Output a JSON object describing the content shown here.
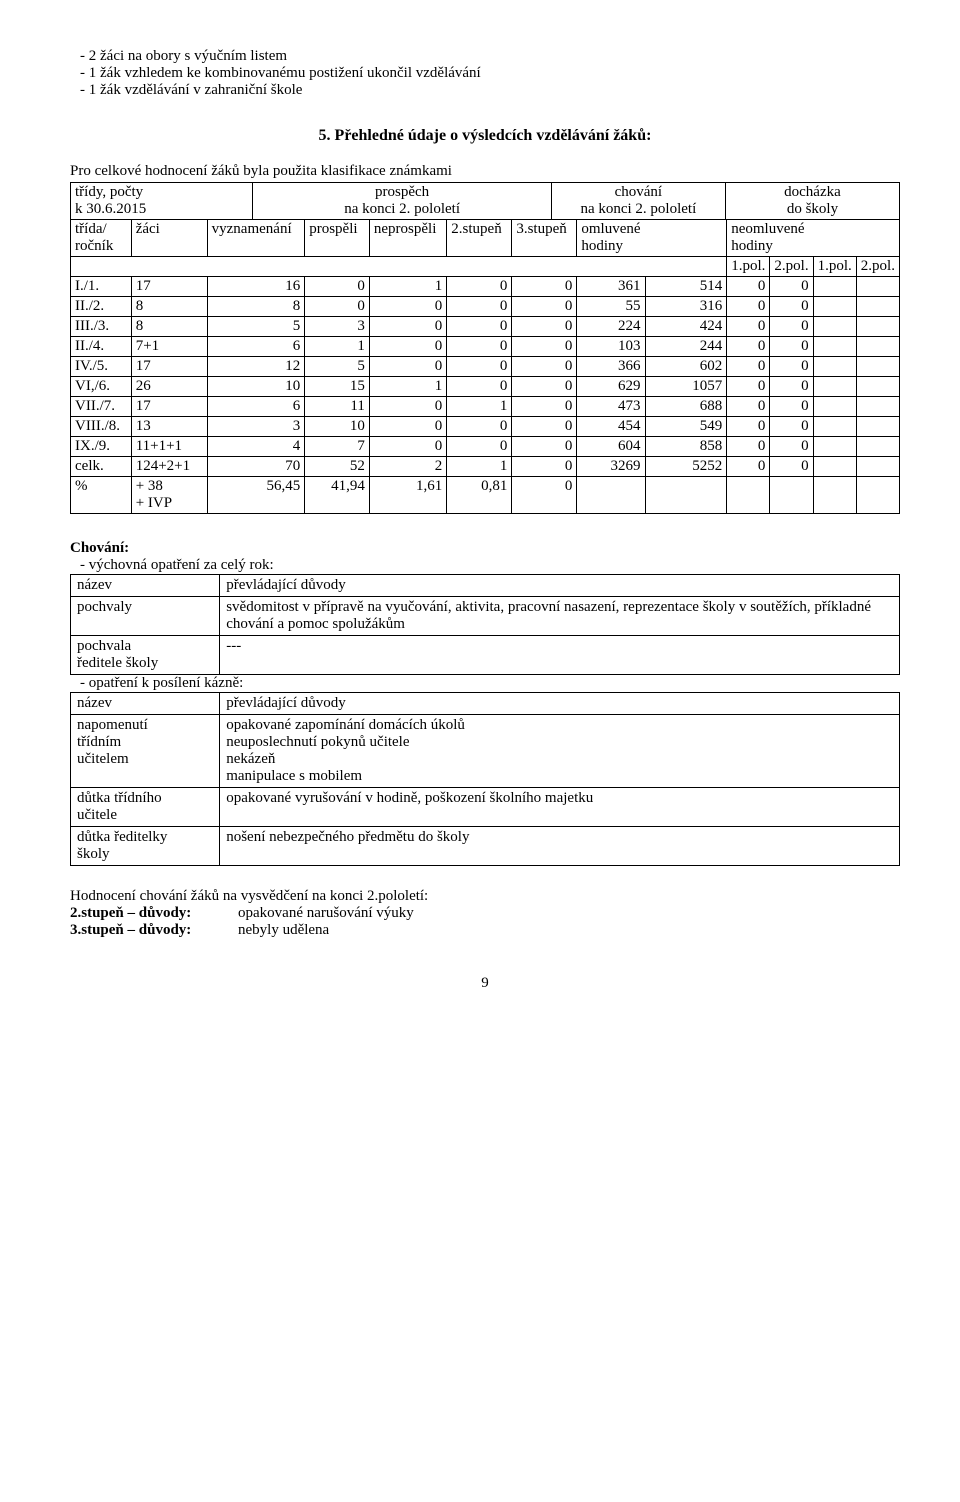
{
  "top_list": [
    "2 žáci na obory s výučním listem",
    "1 žák vzhledem ke kombinovanému postižení ukončil vzdělávání",
    "1 žák vzdělávání v zahraniční škole"
  ],
  "section5_title": "5. Přehledné údaje o výsledcích vzdělávání žáků:",
  "section5_lead": "Pro celkové hodnocení žáků byla použita klasifikace známkami",
  "hdr": {
    "c1a": "třídy, počty",
    "c1b": "k 30.6.2015",
    "c2a": "prospěch",
    "c2b": "na konci 2. pololetí",
    "c3a": "chování",
    "c3b": "na konci 2. pololetí",
    "c4a": "docházka",
    "c4b": "do školy"
  },
  "cols": {
    "c1": "třída/\nročník",
    "c2": "žáci",
    "c3": "vyznamenání",
    "c4": "prospěli",
    "c5": "neprospěli",
    "c6": "2.stupeň",
    "c7": "3.stupeň",
    "c8": "omluvené\nhodiny",
    "c9": "neomluvené\nhodiny"
  },
  "polrow": {
    "a": "1.pol.",
    "b": "2.pol.",
    "c": "1.pol.",
    "d": "2.pol."
  },
  "rows": [
    {
      "label": "I./1.",
      "zaci": "17",
      "vyz": "16",
      "pro": "0",
      "nep": "1",
      "s2": "0",
      "s3": "0",
      "o1": "361",
      "o2": "514",
      "n1": "0",
      "n2": "0"
    },
    {
      "label": "II./2.",
      "zaci": "8",
      "vyz": "8",
      "pro": "0",
      "nep": "0",
      "s2": "0",
      "s3": "0",
      "o1": "55",
      "o2": "316",
      "n1": "0",
      "n2": "0"
    },
    {
      "label": "III./3.",
      "zaci": "8",
      "vyz": "5",
      "pro": "3",
      "nep": "0",
      "s2": "0",
      "s3": "0",
      "o1": "224",
      "o2": "424",
      "n1": "0",
      "n2": "0"
    },
    {
      "label": "II./4.",
      "zaci": "7+1",
      "vyz": "6",
      "pro": "1",
      "nep": "0",
      "s2": "0",
      "s3": "0",
      "o1": "103",
      "o2": "244",
      "n1": "0",
      "n2": "0"
    },
    {
      "label": "IV./5.",
      "zaci": "17",
      "vyz": "12",
      "pro": "5",
      "nep": "0",
      "s2": "0",
      "s3": "0",
      "o1": "366",
      "o2": "602",
      "n1": "0",
      "n2": "0"
    },
    {
      "label": "VI,/6.",
      "zaci": "26",
      "vyz": "10",
      "pro": "15",
      "nep": "1",
      "s2": "0",
      "s3": "0",
      "o1": "629",
      "o2": "1057",
      "n1": "0",
      "n2": "0"
    },
    {
      "label": "VII./7.",
      "zaci": "17",
      "vyz": "6",
      "pro": "11",
      "nep": "0",
      "s2": "1",
      "s3": "0",
      "o1": "473",
      "o2": "688",
      "n1": "0",
      "n2": "0"
    },
    {
      "label": "VIII./8.",
      "zaci": "13",
      "vyz": "3",
      "pro": "10",
      "nep": "0",
      "s2": "0",
      "s3": "0",
      "o1": "454",
      "o2": "549",
      "n1": "0",
      "n2": "0"
    },
    {
      "label": "IX./9.",
      "zaci": "11+1+1",
      "vyz": "4",
      "pro": "7",
      "nep": "0",
      "s2": "0",
      "s3": "0",
      "o1": "604",
      "o2": "858",
      "n1": "0",
      "n2": "0"
    },
    {
      "label": "celk.",
      "zaci": "124+2+1",
      "vyz": "70",
      "pro": "52",
      "nep": "2",
      "s2": "1",
      "s3": "0",
      "o1": "3269",
      "o2": "5252",
      "n1": "0",
      "n2": "0"
    },
    {
      "label": "%",
      "zaci": "+ 38\n+ IVP",
      "vyz": "56,45",
      "pro": "41,94",
      "nep": "1,61",
      "s2": "0,81",
      "s3": "0",
      "o1": "",
      "o2": "",
      "n1": "",
      "n2": ""
    }
  ],
  "behav": {
    "heading": "Chování:",
    "sub1": "výchovná opatření za celý rok:",
    "tbl1": {
      "h1": "název",
      "h2": "převládající důvody",
      "r1a": "pochvaly",
      "r1b": "svědomitost v přípravě na vyučování, aktivita, pracovní nasazení, reprezentace školy v soutěžích, příkladné chování a pomoc spolužákům",
      "r2a": "pochvala\nředitele školy",
      "r2b": "---"
    },
    "sub2": "opatření k posílení kázně:",
    "tbl2": {
      "h1": "název",
      "h2": "převládající důvody",
      "r1a": "napomenutí\ntřídním\nučitelem",
      "r1b": "opakované zapomínání domácích úkolů\nneuposlechnutí pokynů učitele\nnekázeň\nmanipulace s mobilem",
      "r2a": "důtka třídního\nučitele",
      "r2b": "opakované vyrušování v hodině, poškození školního majetku",
      "r3a": "důtka ředitelky\nškoly",
      "r3b": "nošení nebezpečného předmětu do školy"
    }
  },
  "closing": {
    "line1": "Hodnocení chování žáků na vysvědčení na konci 2.pololetí:",
    "l2a": "2.stupeň – důvody:",
    "l2b": "opakované narušování výuky",
    "l3a": "3.stupeň – důvody:",
    "l3b": "nebyly udělena"
  },
  "page": "9"
}
